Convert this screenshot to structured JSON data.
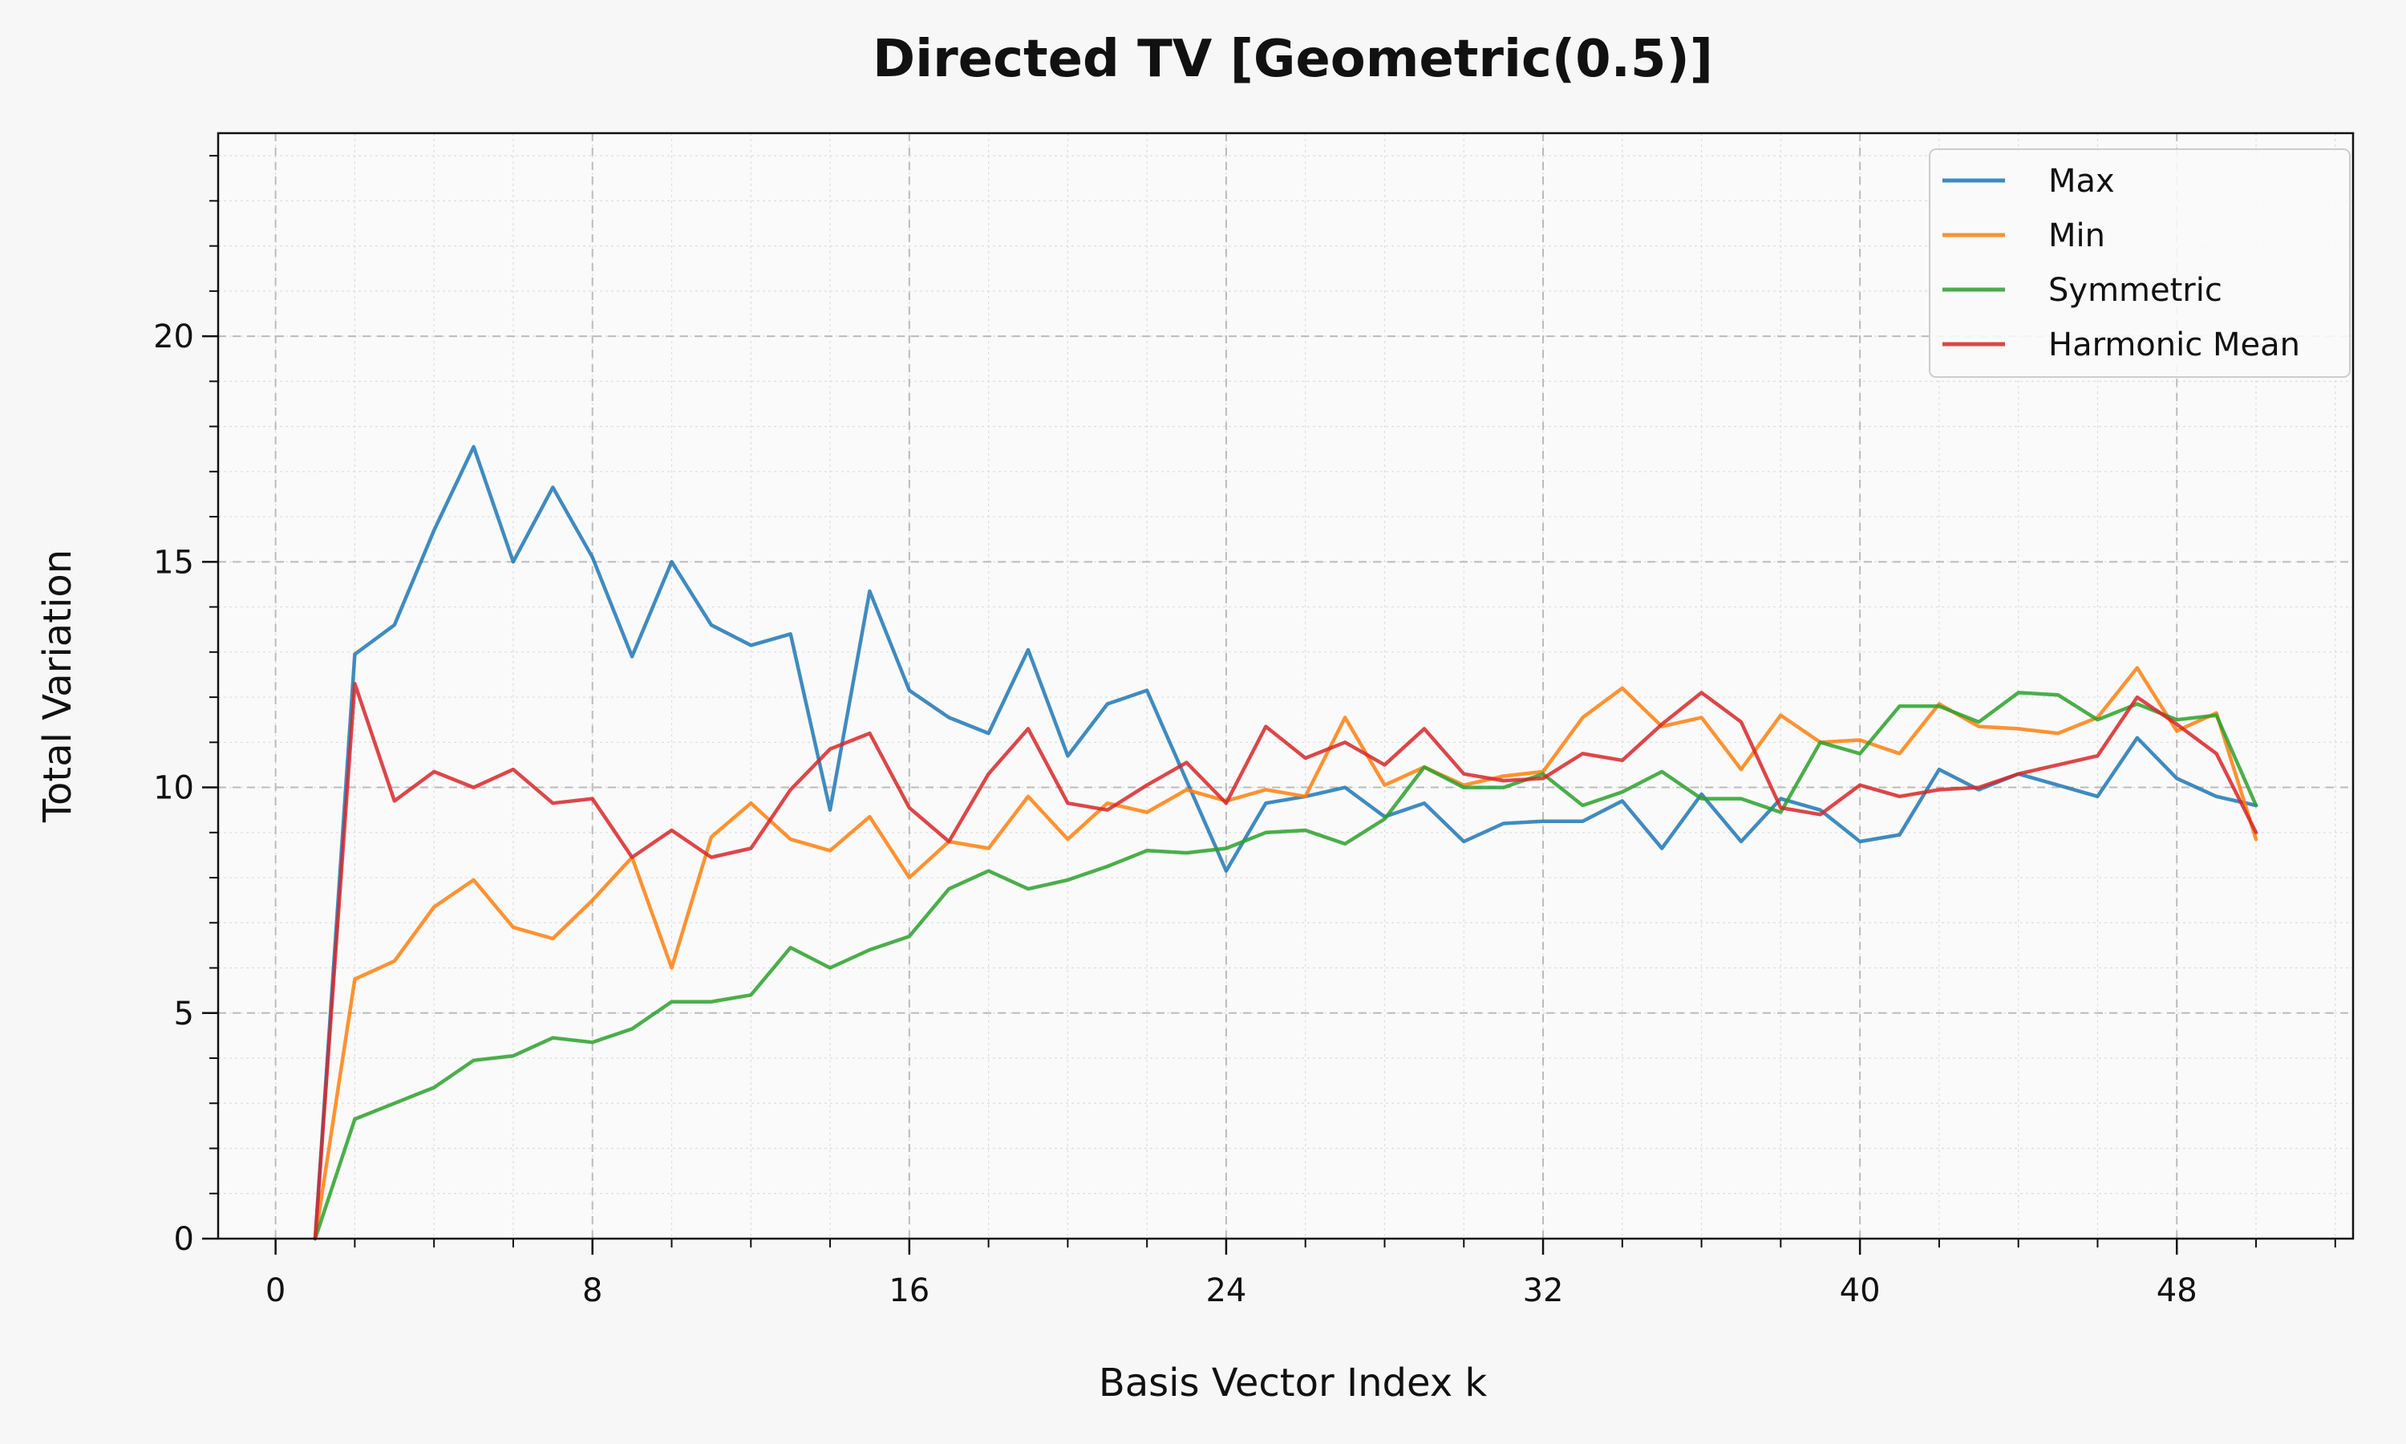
{
  "chart_data": {
    "type": "line",
    "title": "Directed TV [Geometric(0.5)]",
    "xlabel": "Basis Vector Index k",
    "ylabel": "Total Variation",
    "xlim": [
      -1.45,
      52.45
    ],
    "ylim": [
      0,
      24.5
    ],
    "xticks": [
      0,
      8,
      16,
      24,
      32,
      40,
      48
    ],
    "yticks": [
      0,
      5,
      10,
      15,
      20
    ],
    "x_minor_step": 2,
    "y_minor_step": 1,
    "grid": true,
    "legend_position": "top-right",
    "x": [
      1,
      2,
      3,
      4,
      5,
      6,
      7,
      8,
      9,
      10,
      11,
      12,
      13,
      14,
      15,
      16,
      17,
      18,
      19,
      20,
      21,
      22,
      23,
      24,
      25,
      26,
      27,
      28,
      29,
      30,
      31,
      32,
      33,
      34,
      35,
      36,
      37,
      38,
      39,
      40,
      41,
      42,
      43,
      44,
      45,
      46,
      47,
      48,
      49,
      50
    ],
    "series": [
      {
        "name": "Max",
        "color": "#1f77b4",
        "values": [
          0,
          12.95,
          13.6,
          15.7,
          17.55,
          15.0,
          16.65,
          15.1,
          12.9,
          15.0,
          13.6,
          13.15,
          13.4,
          9.5,
          14.35,
          12.15,
          11.55,
          11.2,
          13.05,
          10.7,
          11.85,
          12.15,
          10.15,
          8.15,
          9.65,
          9.8,
          10.0,
          9.35,
          9.65,
          8.8,
          9.2,
          9.25,
          9.25,
          9.7,
          8.65,
          9.85,
          8.8,
          9.75,
          9.5,
          8.8,
          8.95,
          10.4,
          9.95,
          10.3,
          10.05,
          9.8,
          11.1,
          10.2,
          9.8,
          9.6
        ]
      },
      {
        "name": "Min",
        "color": "#ff7f0e",
        "values": [
          0,
          5.75,
          6.15,
          7.35,
          7.95,
          6.9,
          6.65,
          7.5,
          8.45,
          6.0,
          8.9,
          9.65,
          8.85,
          8.6,
          9.35,
          8.0,
          8.8,
          8.65,
          9.8,
          8.85,
          9.65,
          9.45,
          9.95,
          9.7,
          9.95,
          9.8,
          11.55,
          10.05,
          10.45,
          10.05,
          10.25,
          10.35,
          11.55,
          12.2,
          11.35,
          11.55,
          10.4,
          11.6,
          11.0,
          11.05,
          10.75,
          11.85,
          11.35,
          11.3,
          11.2,
          11.55,
          12.65,
          11.25,
          11.65,
          8.85
        ]
      },
      {
        "name": "Symmetric",
        "color": "#2ca02c",
        "values": [
          0,
          2.65,
          3.0,
          3.35,
          3.95,
          4.05,
          4.45,
          4.35,
          4.65,
          5.25,
          5.25,
          5.4,
          6.45,
          6.0,
          6.4,
          6.7,
          7.75,
          8.15,
          7.75,
          7.95,
          8.25,
          8.6,
          8.55,
          8.65,
          9.0,
          9.05,
          8.75,
          9.3,
          10.45,
          10.0,
          10.0,
          10.3,
          9.6,
          9.9,
          10.35,
          9.75,
          9.75,
          9.45,
          11.0,
          10.75,
          11.8,
          11.8,
          11.45,
          12.1,
          12.05,
          11.5,
          11.85,
          11.5,
          11.6,
          9.6
        ]
      },
      {
        "name": "Harmonic Mean",
        "color": "#d62728",
        "values": [
          0,
          12.3,
          9.7,
          10.35,
          10.0,
          10.4,
          9.65,
          9.75,
          8.45,
          9.05,
          8.45,
          8.65,
          9.95,
          10.85,
          11.2,
          9.55,
          8.8,
          10.3,
          11.3,
          9.65,
          9.5,
          10.05,
          10.55,
          9.65,
          11.35,
          10.65,
          11.0,
          10.5,
          11.3,
          10.3,
          10.15,
          10.2,
          10.75,
          10.6,
          11.4,
          12.1,
          11.45,
          9.55,
          9.4,
          10.05,
          9.8,
          9.95,
          10.0,
          10.3,
          10.5,
          10.7,
          12.0,
          11.4,
          10.75,
          9.0
        ]
      }
    ]
  }
}
